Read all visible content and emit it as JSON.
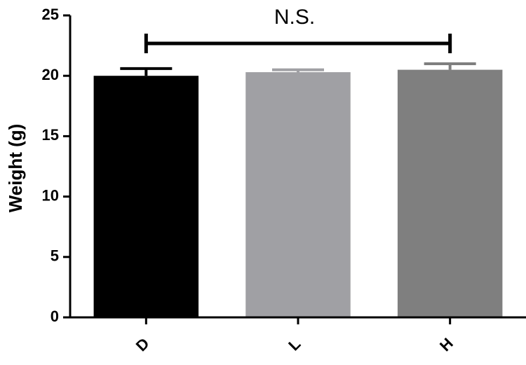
{
  "chart_data": {
    "type": "bar",
    "annotation": "N.S.",
    "y_label": "Weight (g)",
    "categories": [
      "D",
      "L",
      "H"
    ],
    "values": [
      20.0,
      20.3,
      20.5
    ],
    "errors": [
      0.6,
      0.2,
      0.5
    ],
    "colors": [
      "#000000",
      "#a0a0a4",
      "#7f7f7f"
    ],
    "ylim": [
      0,
      25
    ],
    "yticks": [
      0,
      5,
      10,
      15,
      20,
      25
    ]
  }
}
